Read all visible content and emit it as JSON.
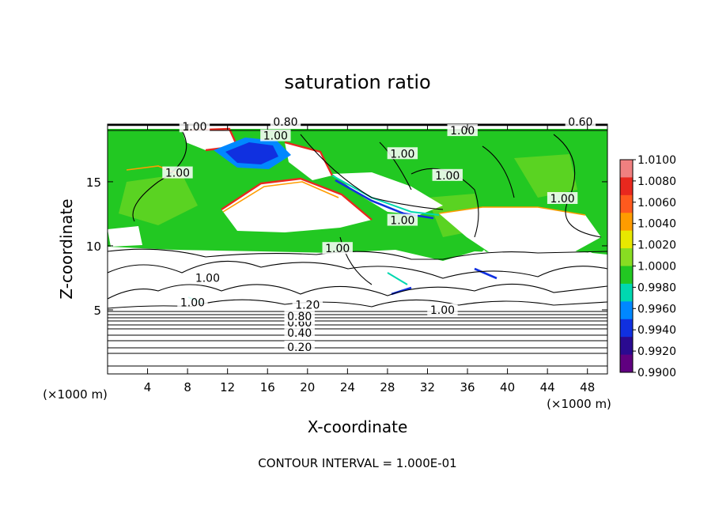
{
  "chart_data": {
    "type": "heatmap",
    "title": "saturation ratio",
    "xlabel": "X-coordinate",
    "ylabel": "Z-coordinate",
    "x_unit_left": "(×1000 m)",
    "x_unit_right": "(×1000 m)",
    "xlim": [
      0,
      50
    ],
    "ylim": [
      0,
      19.5
    ],
    "x_ticks": [
      4,
      8,
      12,
      16,
      20,
      24,
      28,
      32,
      36,
      40,
      44,
      48
    ],
    "y_ticks": [
      5,
      10,
      15
    ],
    "footer": "CONTOUR INTERVAL = 1.000E-01",
    "colorbar": {
      "levels": [
        "1.0100",
        "1.0080",
        "1.0060",
        "1.0040",
        "1.0020",
        "1.0000",
        "0.9980",
        "0.9960",
        "0.9940",
        "0.9920",
        "0.9900"
      ],
      "colors": [
        "#f08080",
        "#e8281e",
        "#ff5a1e",
        "#ff9c00",
        "#e8e800",
        "#88dd22",
        "#22c822",
        "#00d8b0",
        "#0088ff",
        "#1030e0",
        "#2a0a90",
        "#600080"
      ]
    },
    "contour_labels": [
      {
        "text": "0.20",
        "x": 19.2,
        "y": 2.1
      },
      {
        "text": "0.40",
        "x": 19.2,
        "y": 3.2
      },
      {
        "text": "0.60",
        "x": 19.2,
        "y": 4.0
      },
      {
        "text": "0.80",
        "x": 19.2,
        "y": 4.5
      },
      {
        "text": "1.20",
        "x": 20.0,
        "y": 5.4
      },
      {
        "text": "1.00",
        "x": 8.5,
        "y": 5.6
      },
      {
        "text": "1.00",
        "x": 33.5,
        "y": 5.0
      },
      {
        "text": "1.00",
        "x": 10.0,
        "y": 7.5
      },
      {
        "text": "1.00",
        "x": 23.0,
        "y": 9.8
      },
      {
        "text": "1.00",
        "x": 29.5,
        "y": 12.0
      },
      {
        "text": "1.00",
        "x": 7.0,
        "y": 15.7
      },
      {
        "text": "1.00",
        "x": 16.8,
        "y": 18.6
      },
      {
        "text": "1.00",
        "x": 8.7,
        "y": 19.3
      },
      {
        "text": "1.00",
        "x": 29.5,
        "y": 17.2
      },
      {
        "text": "1.00",
        "x": 35.5,
        "y": 19.0
      },
      {
        "text": "1.00",
        "x": 34.0,
        "y": 15.5
      },
      {
        "text": "1.00",
        "x": 45.5,
        "y": 13.7
      },
      {
        "text": "0.80",
        "x": 17.8,
        "y": 19.7
      },
      {
        "text": "0.60",
        "x": 47.3,
        "y": 19.7
      }
    ]
  }
}
